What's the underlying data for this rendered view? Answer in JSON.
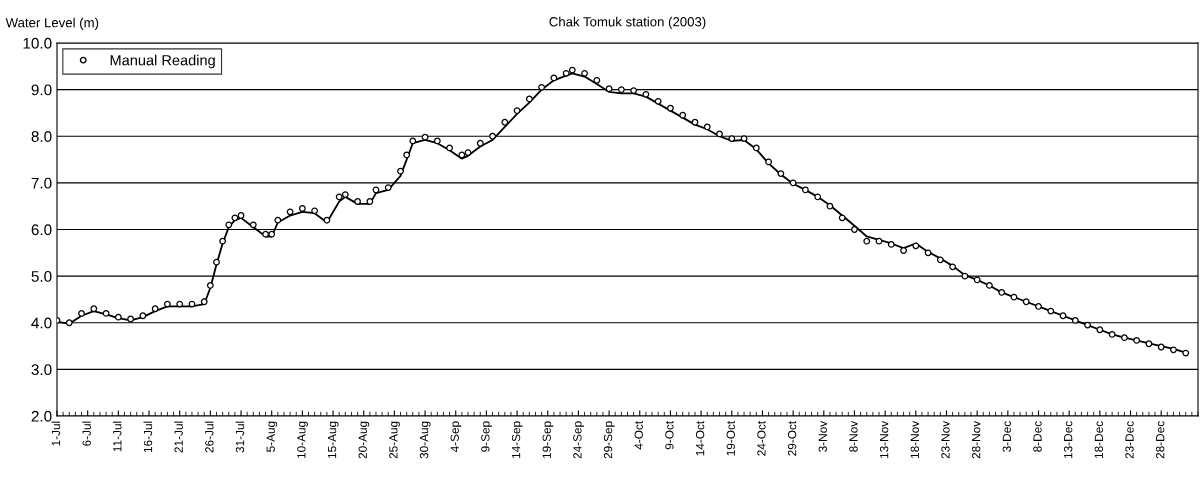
{
  "chart_data": {
    "type": "line",
    "title": "Chak Tomuk station (2003)",
    "ylabel": "Water Level (m)",
    "x": [
      "2003-07-01",
      "2003-07-03",
      "2003-07-05",
      "2003-07-07",
      "2003-07-09",
      "2003-07-11",
      "2003-07-13",
      "2003-07-15",
      "2003-07-17",
      "2003-07-19",
      "2003-07-21",
      "2003-07-23",
      "2003-07-25",
      "2003-07-26",
      "2003-07-27",
      "2003-07-28",
      "2003-07-29",
      "2003-07-30",
      "2003-07-31",
      "2003-08-02",
      "2003-08-04",
      "2003-08-05",
      "2003-08-06",
      "2003-08-08",
      "2003-08-10",
      "2003-08-12",
      "2003-08-14",
      "2003-08-16",
      "2003-08-17",
      "2003-08-19",
      "2003-08-21",
      "2003-08-22",
      "2003-08-24",
      "2003-08-26",
      "2003-08-27",
      "2003-08-28",
      "2003-08-30",
      "2003-09-01",
      "2003-09-03",
      "2003-09-05",
      "2003-09-06",
      "2003-09-08",
      "2003-09-10",
      "2003-09-12",
      "2003-09-14",
      "2003-09-16",
      "2003-09-18",
      "2003-09-20",
      "2003-09-22",
      "2003-09-23",
      "2003-09-25",
      "2003-09-27",
      "2003-09-29",
      "2003-10-01",
      "2003-10-03",
      "2003-10-05",
      "2003-10-07",
      "2003-10-09",
      "2003-10-11",
      "2003-10-13",
      "2003-10-15",
      "2003-10-17",
      "2003-10-19",
      "2003-10-21",
      "2003-10-23",
      "2003-10-25",
      "2003-10-27",
      "2003-10-29",
      "2003-10-31",
      "2003-11-02",
      "2003-11-04",
      "2003-11-06",
      "2003-11-08",
      "2003-11-10",
      "2003-11-12",
      "2003-11-14",
      "2003-11-16",
      "2003-11-18",
      "2003-11-20",
      "2003-11-22",
      "2003-11-24",
      "2003-11-26",
      "2003-11-28",
      "2003-11-30",
      "2003-12-02",
      "2003-12-04",
      "2003-12-06",
      "2003-12-08",
      "2003-12-10",
      "2003-12-12",
      "2003-12-14",
      "2003-12-16",
      "2003-12-18",
      "2003-12-20",
      "2003-12-22",
      "2003-12-24",
      "2003-12-26",
      "2003-12-28",
      "2003-12-30",
      "2004-01-01"
    ],
    "series": [
      {
        "color": "#000000",
        "marker": "none",
        "line_style": "solid",
        "values": [
          4.02,
          3.98,
          4.15,
          4.25,
          4.18,
          4.1,
          4.05,
          4.12,
          4.25,
          4.35,
          4.35,
          4.35,
          4.4,
          4.75,
          5.25,
          5.7,
          6.05,
          6.2,
          6.25,
          6.05,
          5.85,
          5.85,
          6.15,
          6.3,
          6.38,
          6.35,
          6.15,
          6.6,
          6.7,
          6.55,
          6.55,
          6.78,
          6.85,
          7.15,
          7.5,
          7.85,
          7.92,
          7.85,
          7.7,
          7.52,
          7.58,
          7.78,
          7.92,
          8.2,
          8.48,
          8.72,
          9.0,
          9.2,
          9.3,
          9.35,
          9.28,
          9.12,
          8.95,
          8.92,
          8.92,
          8.85,
          8.7,
          8.55,
          8.4,
          8.25,
          8.15,
          8.0,
          7.9,
          7.92,
          7.72,
          7.42,
          7.18,
          6.98,
          6.85,
          6.7,
          6.52,
          6.3,
          6.08,
          5.85,
          5.78,
          5.7,
          5.6,
          5.7,
          5.52,
          5.38,
          5.22,
          5.02,
          4.92,
          4.8,
          4.65,
          4.55,
          4.45,
          4.35,
          4.25,
          4.15,
          4.05,
          3.95,
          3.85,
          3.75,
          3.68,
          3.62,
          3.56,
          3.5,
          3.44,
          3.36
        ]
      },
      {
        "type": "scatter",
        "name": "Manual Reading",
        "color": "#000000",
        "marker": "circle",
        "values": [
          4.05,
          4.0,
          4.2,
          4.3,
          4.2,
          4.12,
          4.08,
          4.15,
          4.3,
          4.4,
          4.4,
          4.4,
          4.45,
          4.8,
          5.3,
          5.75,
          6.1,
          6.25,
          6.3,
          6.1,
          5.9,
          5.9,
          6.2,
          6.38,
          6.45,
          6.4,
          6.2,
          6.7,
          6.75,
          6.6,
          6.6,
          6.85,
          6.9,
          7.25,
          7.6,
          7.9,
          7.98,
          7.9,
          7.75,
          7.6,
          7.65,
          7.85,
          8.0,
          8.3,
          8.55,
          8.8,
          9.05,
          9.25,
          9.35,
          9.42,
          9.35,
          9.2,
          9.02,
          9.0,
          8.98,
          8.9,
          8.75,
          8.6,
          8.45,
          8.3,
          8.2,
          8.05,
          7.95,
          7.95,
          7.75,
          7.45,
          7.2,
          7.0,
          6.85,
          6.7,
          6.5,
          6.25,
          6.0,
          5.75,
          5.75,
          5.68,
          5.55,
          5.65,
          5.5,
          5.35,
          5.2,
          5.0,
          4.92,
          4.8,
          4.65,
          4.55,
          4.45,
          4.35,
          4.25,
          4.15,
          4.05,
          3.95,
          3.85,
          3.75,
          3.68,
          3.62,
          3.55,
          3.48,
          3.42,
          3.35
        ]
      }
    ],
    "xlim": [
      "2003-07-01",
      "2004-01-03"
    ],
    "xticks": [
      {
        "value": "2003-07-01",
        "label": "1-Jul"
      },
      {
        "value": "2003-07-06",
        "label": "6-Jul"
      },
      {
        "value": "2003-07-11",
        "label": "11-Jul"
      },
      {
        "value": "2003-07-16",
        "label": "16-Jul"
      },
      {
        "value": "2003-07-21",
        "label": "21-Jul"
      },
      {
        "value": "2003-07-26",
        "label": "26-Jul"
      },
      {
        "value": "2003-07-31",
        "label": "31-Jul"
      },
      {
        "value": "2003-08-05",
        "label": "5-Aug"
      },
      {
        "value": "2003-08-10",
        "label": "10-Aug"
      },
      {
        "value": "2003-08-15",
        "label": "15-Aug"
      },
      {
        "value": "2003-08-20",
        "label": "20-Aug"
      },
      {
        "value": "2003-08-25",
        "label": "25-Aug"
      },
      {
        "value": "2003-08-30",
        "label": "30-Aug"
      },
      {
        "value": "2003-09-04",
        "label": "4-Sep"
      },
      {
        "value": "2003-09-09",
        "label": "9-Sep"
      },
      {
        "value": "2003-09-14",
        "label": "14-Sep"
      },
      {
        "value": "2003-09-19",
        "label": "19-Sep"
      },
      {
        "value": "2003-09-24",
        "label": "24-Sep"
      },
      {
        "value": "2003-09-29",
        "label": "29-Sep"
      },
      {
        "value": "2003-10-04",
        "label": "4-Oct"
      },
      {
        "value": "2003-10-09",
        "label": "9-Oct"
      },
      {
        "value": "2003-10-14",
        "label": "14-Oct"
      },
      {
        "value": "2003-10-19",
        "label": "19-Oct"
      },
      {
        "value": "2003-10-24",
        "label": "24-Oct"
      },
      {
        "value": "2003-10-29",
        "label": "29-Oct"
      },
      {
        "value": "2003-11-03",
        "label": "3-Nov"
      },
      {
        "value": "2003-11-08",
        "label": "8-Nov"
      },
      {
        "value": "2003-11-13",
        "label": "13-Nov"
      },
      {
        "value": "2003-11-18",
        "label": "18-Nov"
      },
      {
        "value": "2003-11-23",
        "label": "23-Nov"
      },
      {
        "value": "2003-11-28",
        "label": "28-Nov"
      },
      {
        "value": "2003-12-03",
        "label": "3-Dec"
      },
      {
        "value": "2003-12-08",
        "label": "8-Dec"
      },
      {
        "value": "2003-12-13",
        "label": "13-Dec"
      },
      {
        "value": "2003-12-18",
        "label": "18-Dec"
      },
      {
        "value": "2003-12-23",
        "label": "23-Dec"
      },
      {
        "value": "2003-12-28",
        "label": "28-Dec"
      }
    ],
    "ylim": [
      2.0,
      10.0
    ],
    "yticks": [
      {
        "value": 2,
        "label": "2.0"
      },
      {
        "value": 3,
        "label": "3.0"
      },
      {
        "value": 4,
        "label": "4.0"
      },
      {
        "value": 5,
        "label": "5.0"
      },
      {
        "value": 6,
        "label": "6.0"
      },
      {
        "value": 7,
        "label": "7.0"
      },
      {
        "value": 8,
        "label": "8.0"
      },
      {
        "value": 9,
        "label": "9.0"
      },
      {
        "value": 10,
        "label": "10.0"
      }
    ],
    "grid": "y",
    "legend": "top left"
  }
}
